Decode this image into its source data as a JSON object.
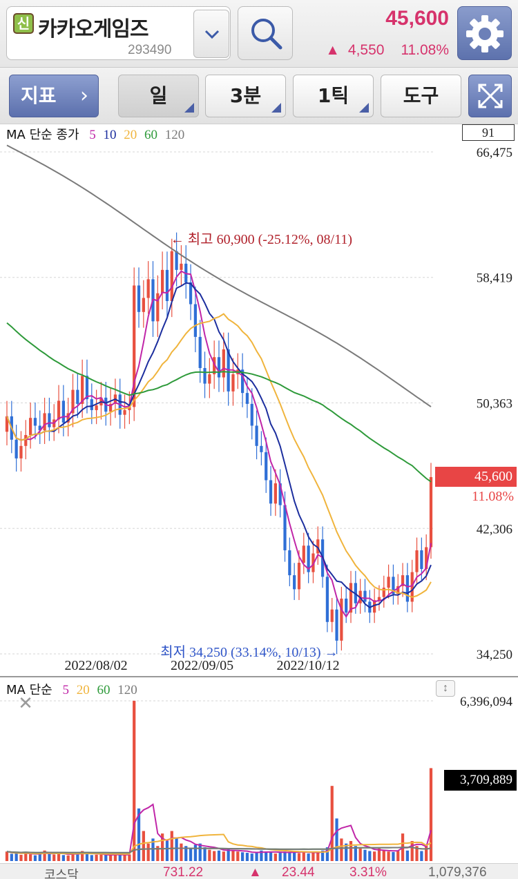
{
  "header": {
    "credit_badge": "신",
    "stock_name": "카카오게임즈",
    "stock_code": "293490",
    "price": "45,600",
    "change_arrow": "▲",
    "change": "4,550",
    "change_rate": "11.08%",
    "icons": [
      "chevron-down-icon",
      "search-icon",
      "gear-icon"
    ]
  },
  "toolbar": {
    "indicator_label": "지표",
    "indicator_chevron": "›",
    "period_day": "일",
    "period_minute": "3분",
    "period_tick": "1틱",
    "tools": "도구",
    "expand_icon": "expand-icon"
  },
  "price_panel": {
    "legend_label": "MA 단순 종가",
    "ma_periods": [
      "5",
      "10",
      "20",
      "60",
      "120"
    ],
    "ma_colors": [
      "#c026a8",
      "#1c2e9e",
      "#f0b43c",
      "#2e9a3a",
      "#7a7a7a"
    ],
    "visible_count": "91",
    "current_price": "45,600",
    "current_change_rate": "11.08%",
    "high_annotation": "← 최고 60,900 (-25.12%, 08/11)",
    "low_annotation": "최저 34,250 (33.14%, 10/13) →",
    "date_labels": [
      "2022/08/02",
      "2022/09/05",
      "2022/10/12"
    ],
    "up_color": "#e8503f",
    "down_color": "#2f6fd6"
  },
  "volume_panel": {
    "legend_label": "MA 단순",
    "ma_periods": [
      "5",
      "20",
      "60",
      "120"
    ],
    "ma_colors": [
      "#c026a8",
      "#f0b43c",
      "#2e9a3a",
      "#7a7a7a"
    ],
    "close_icon": "close-icon",
    "resize_icon": "resize-icon",
    "resize_glyph": "↕",
    "current_volume": "3,709,889"
  },
  "chart_data": [
    {
      "type": "candlestick",
      "title": "",
      "yticks": [
        66475,
        58419,
        50363,
        42306,
        34250
      ],
      "ytick_labels": [
        "66,475",
        "58,419",
        "50,363",
        "42,306",
        "34,250"
      ],
      "ylim": [
        34250,
        66475
      ],
      "xtick_labels": [
        "2022/08/02",
        "2022/09/05",
        "2022/10/12"
      ],
      "grid": true,
      "high": {
        "value": 60900,
        "label": "최고 60,900 (-25.12%, 08/11)"
      },
      "low": {
        "value": 34250,
        "label": "최저 34,250 (33.14%, 10/13)"
      },
      "closes": [
        49500,
        48000,
        46800,
        47600,
        48300,
        49400,
        48900,
        48600,
        49700,
        48800,
        49300,
        50500,
        49100,
        49700,
        51200,
        50300,
        52100,
        50600,
        49900,
        50200,
        50700,
        49800,
        50300,
        50900,
        49600,
        49900,
        50100,
        57900,
        56200,
        57100,
        58300,
        55600,
        57400,
        58900,
        56900,
        60100,
        58900,
        59300,
        58100,
        56700,
        54600,
        52600,
        51600,
        52200,
        53300,
        52000,
        53800,
        51100,
        52200,
        52500,
        51000,
        50300,
        48900,
        47600,
        47200,
        45400,
        43900,
        45200,
        43800,
        40900,
        39300,
        38400,
        40100,
        41200,
        39500,
        40700,
        41600,
        39200,
        36300,
        37100,
        35100,
        37800,
        36900,
        38800,
        37500,
        38300,
        37600,
        36900,
        37700,
        37900,
        38500,
        39200,
        38100,
        38600,
        39300,
        37600,
        39500,
        40900,
        39700,
        41100,
        45600
      ],
      "ma_lines": [
        {
          "name": "5",
          "color": "#c026a8"
        },
        {
          "name": "10",
          "color": "#1c2e9e"
        },
        {
          "name": "20",
          "color": "#f0b43c"
        },
        {
          "name": "60",
          "color": "#2e9a3a"
        },
        {
          "name": "120",
          "color": "#7a7a7a"
        }
      ]
    },
    {
      "type": "bar",
      "title": "",
      "yticks": [
        6396094
      ],
      "ytick_labels": [
        "6,396,094"
      ],
      "ylim": [
        0,
        6396094
      ],
      "current": {
        "value": 3709889,
        "label": "3,709,889"
      },
      "volumes": [
        380000,
        290000,
        310000,
        250000,
        360000,
        270000,
        230000,
        300000,
        420000,
        280000,
        260000,
        330000,
        240000,
        220000,
        350000,
        260000,
        400000,
        280000,
        240000,
        250000,
        260000,
        240000,
        230000,
        290000,
        250000,
        240000,
        260000,
        6400000,
        2100000,
        1200000,
        700000,
        900000,
        600000,
        1100000,
        800000,
        1200000,
        900000,
        700000,
        600000,
        500000,
        650000,
        700000,
        550000,
        450000,
        400000,
        420000,
        380000,
        500000,
        420000,
        380000,
        350000,
        330000,
        300000,
        360000,
        420000,
        380000,
        350000,
        300000,
        330000,
        380000,
        360000,
        400000,
        320000,
        380000,
        300000,
        340000,
        360000,
        420000,
        550000,
        3000000,
        1700000,
        900000,
        700000,
        800000,
        600000,
        500000,
        450000,
        400000,
        380000,
        500000,
        420000,
        380000,
        360000,
        400000,
        1100000,
        420000,
        800000,
        600000,
        400000,
        650000,
        3709889
      ]
    }
  ],
  "market_strip": {
    "name": "코스닥",
    "index": "731.22",
    "arrow": "▲",
    "change": "23.44",
    "rate": "3.31%",
    "volume": "1,079,376"
  }
}
